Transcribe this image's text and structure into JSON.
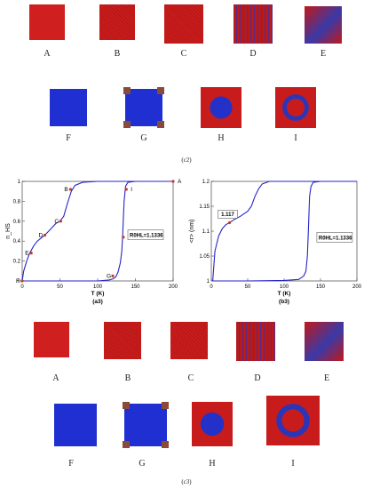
{
  "row_c2_top": [
    "A",
    "B",
    "C",
    "D",
    "E"
  ],
  "row_c2_bottom": [
    "F",
    "G",
    "H",
    "I"
  ],
  "caption_c2": "(c2)",
  "row_c3_top": [
    "A",
    "B",
    "C",
    "D",
    "E"
  ],
  "row_c3_bottom": [
    "F",
    "G",
    "H",
    "I"
  ],
  "caption_c3": "(c3)",
  "chart_data": [
    {
      "type": "line",
      "ylabel": "n_HS",
      "xlabel": "T (K)",
      "caption": "(a3)",
      "xlim": [
        0,
        200
      ],
      "ylim": [
        0,
        1
      ],
      "xticks": [
        0,
        50,
        100,
        150,
        200
      ],
      "yticks": [
        0,
        0.2,
        0.4,
        0.6,
        0.8,
        1
      ],
      "annotation": "R0HL=1.1336",
      "points": [
        {
          "label": "A",
          "x": 200,
          "y": 1.0
        },
        {
          "label": "B",
          "x": 64,
          "y": 0.92
        },
        {
          "label": "C",
          "x": 51,
          "y": 0.6
        },
        {
          "label": "D",
          "x": 30,
          "y": 0.46
        },
        {
          "label": "E",
          "x": 12,
          "y": 0.28
        },
        {
          "label": "F",
          "x": 0,
          "y": 0.0
        },
        {
          "label": "G",
          "x": 120,
          "y": 0.05
        },
        {
          "label": "H",
          "x": 134,
          "y": 0.44
        },
        {
          "label": "I",
          "x": 138,
          "y": 0.92
        }
      ],
      "series": [
        {
          "values_x": [
            0,
            2,
            6,
            10,
            15,
            20,
            25,
            30,
            35,
            40,
            45,
            50,
            55,
            60,
            65,
            70,
            80,
            100,
            140,
            170,
            200
          ],
          "values_y": [
            0,
            0.1,
            0.2,
            0.28,
            0.35,
            0.4,
            0.43,
            0.46,
            0.5,
            0.54,
            0.58,
            0.6,
            0.65,
            0.78,
            0.9,
            0.96,
            0.99,
            1.0,
            1.0,
            1.0,
            1.0
          ]
        },
        {
          "values_x": [
            200,
            150,
            140,
            137,
            135,
            134,
            133,
            132,
            130,
            127,
            124,
            120,
            115,
            100,
            50,
            10,
            0
          ],
          "values_y": [
            1.0,
            1.0,
            0.99,
            0.95,
            0.8,
            0.62,
            0.45,
            0.3,
            0.18,
            0.09,
            0.04,
            0.02,
            0.01,
            0.0,
            0.0,
            0.0,
            0.0
          ]
        }
      ]
    },
    {
      "type": "line",
      "ylabel": "<r> (nm)",
      "xlabel": "T (K)",
      "caption": "(b3)",
      "xlim": [
        0,
        200
      ],
      "ylim": [
        1.0,
        1.2
      ],
      "xticks": [
        0,
        50,
        100,
        150,
        200
      ],
      "yticks": [
        1,
        1.05,
        1.1,
        1.15,
        1.2
      ],
      "marker_label": "1.117",
      "annotation": "R0HL=1.1336",
      "series": [
        {
          "values_x": [
            2,
            5,
            10,
            15,
            20,
            25,
            30,
            40,
            50,
            55,
            60,
            65,
            70,
            80,
            90,
            100,
            150,
            200
          ],
          "values_y": [
            1.0,
            1.06,
            1.09,
            1.105,
            1.113,
            1.117,
            1.122,
            1.13,
            1.14,
            1.15,
            1.17,
            1.185,
            1.195,
            1.2,
            1.2,
            1.2,
            1.2,
            1.2
          ]
        },
        {
          "values_x": [
            200,
            150,
            140,
            137,
            135,
            134,
            133,
            132,
            130,
            127,
            120,
            100,
            50,
            10,
            2
          ],
          "values_y": [
            1.2,
            1.2,
            1.198,
            1.19,
            1.17,
            1.13,
            1.09,
            1.05,
            1.02,
            1.01,
            1.003,
            1.001,
            1.0,
            1.0,
            1.0
          ]
        }
      ]
    }
  ]
}
